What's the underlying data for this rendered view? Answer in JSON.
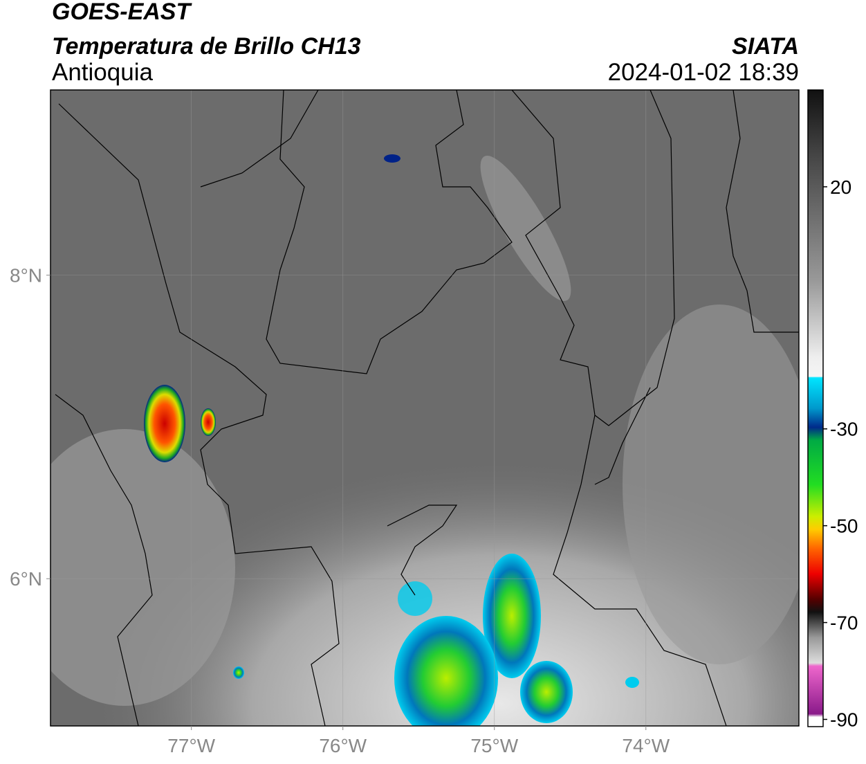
{
  "header": {
    "title": "GOES-EAST",
    "subtitle": "Temperatura de Brillo CH13",
    "region": "Antioquia",
    "source": "SIATA",
    "datetime": "2024-01-02 18:39"
  },
  "map": {
    "xlim": [
      -77.93,
      -72.99
    ],
    "ylim": [
      5.03,
      9.22
    ],
    "xticks": [
      {
        "value": -77,
        "label": "77°W"
      },
      {
        "value": -76,
        "label": "76°W"
      },
      {
        "value": -75,
        "label": "75°W"
      },
      {
        "value": -74,
        "label": "74°W"
      }
    ],
    "yticks": [
      {
        "value": 6,
        "label": "6°N"
      },
      {
        "value": 8,
        "label": "8°N"
      }
    ],
    "grid": true
  },
  "colorbar": {
    "clim": [
      -91.5,
      40
    ],
    "ticks": [
      -90,
      -70,
      -50,
      -30,
      20
    ]
  }
}
